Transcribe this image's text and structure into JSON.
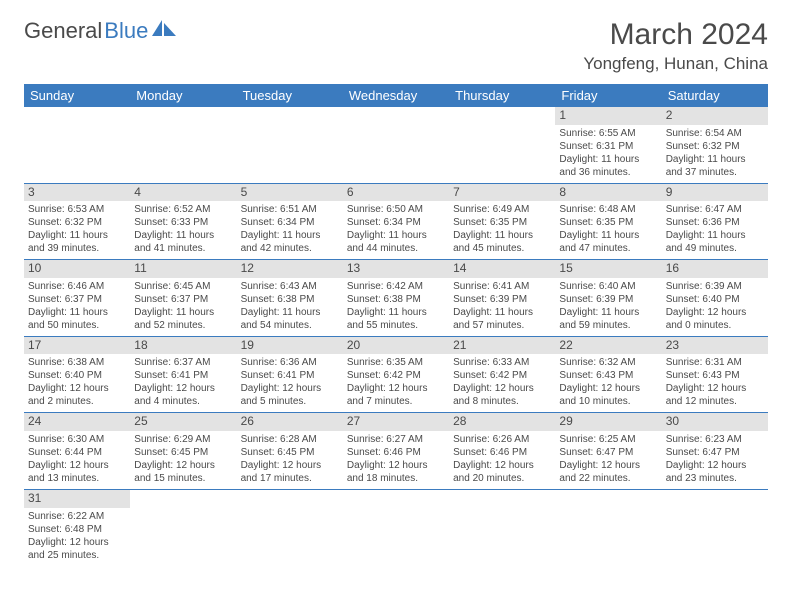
{
  "logo": {
    "text1": "General",
    "text2": "Blue"
  },
  "title": "March 2024",
  "location": "Yongfeng, Hunan, China",
  "colors": {
    "header_bg": "#3b7bbf",
    "header_fg": "#ffffff",
    "daynum_bg": "#e3e3e3",
    "rule": "#3b7bbf",
    "text": "#4a4a4a"
  },
  "day_headers": [
    "Sunday",
    "Monday",
    "Tuesday",
    "Wednesday",
    "Thursday",
    "Friday",
    "Saturday"
  ],
  "weeks": [
    [
      {
        "n": "",
        "sr": "",
        "ss": "",
        "dl1": "",
        "dl2": ""
      },
      {
        "n": "",
        "sr": "",
        "ss": "",
        "dl1": "",
        "dl2": ""
      },
      {
        "n": "",
        "sr": "",
        "ss": "",
        "dl1": "",
        "dl2": ""
      },
      {
        "n": "",
        "sr": "",
        "ss": "",
        "dl1": "",
        "dl2": ""
      },
      {
        "n": "",
        "sr": "",
        "ss": "",
        "dl1": "",
        "dl2": ""
      },
      {
        "n": "1",
        "sr": "Sunrise: 6:55 AM",
        "ss": "Sunset: 6:31 PM",
        "dl1": "Daylight: 11 hours",
        "dl2": "and 36 minutes."
      },
      {
        "n": "2",
        "sr": "Sunrise: 6:54 AM",
        "ss": "Sunset: 6:32 PM",
        "dl1": "Daylight: 11 hours",
        "dl2": "and 37 minutes."
      }
    ],
    [
      {
        "n": "3",
        "sr": "Sunrise: 6:53 AM",
        "ss": "Sunset: 6:32 PM",
        "dl1": "Daylight: 11 hours",
        "dl2": "and 39 minutes."
      },
      {
        "n": "4",
        "sr": "Sunrise: 6:52 AM",
        "ss": "Sunset: 6:33 PM",
        "dl1": "Daylight: 11 hours",
        "dl2": "and 41 minutes."
      },
      {
        "n": "5",
        "sr": "Sunrise: 6:51 AM",
        "ss": "Sunset: 6:34 PM",
        "dl1": "Daylight: 11 hours",
        "dl2": "and 42 minutes."
      },
      {
        "n": "6",
        "sr": "Sunrise: 6:50 AM",
        "ss": "Sunset: 6:34 PM",
        "dl1": "Daylight: 11 hours",
        "dl2": "and 44 minutes."
      },
      {
        "n": "7",
        "sr": "Sunrise: 6:49 AM",
        "ss": "Sunset: 6:35 PM",
        "dl1": "Daylight: 11 hours",
        "dl2": "and 45 minutes."
      },
      {
        "n": "8",
        "sr": "Sunrise: 6:48 AM",
        "ss": "Sunset: 6:35 PM",
        "dl1": "Daylight: 11 hours",
        "dl2": "and 47 minutes."
      },
      {
        "n": "9",
        "sr": "Sunrise: 6:47 AM",
        "ss": "Sunset: 6:36 PM",
        "dl1": "Daylight: 11 hours",
        "dl2": "and 49 minutes."
      }
    ],
    [
      {
        "n": "10",
        "sr": "Sunrise: 6:46 AM",
        "ss": "Sunset: 6:37 PM",
        "dl1": "Daylight: 11 hours",
        "dl2": "and 50 minutes."
      },
      {
        "n": "11",
        "sr": "Sunrise: 6:45 AM",
        "ss": "Sunset: 6:37 PM",
        "dl1": "Daylight: 11 hours",
        "dl2": "and 52 minutes."
      },
      {
        "n": "12",
        "sr": "Sunrise: 6:43 AM",
        "ss": "Sunset: 6:38 PM",
        "dl1": "Daylight: 11 hours",
        "dl2": "and 54 minutes."
      },
      {
        "n": "13",
        "sr": "Sunrise: 6:42 AM",
        "ss": "Sunset: 6:38 PM",
        "dl1": "Daylight: 11 hours",
        "dl2": "and 55 minutes."
      },
      {
        "n": "14",
        "sr": "Sunrise: 6:41 AM",
        "ss": "Sunset: 6:39 PM",
        "dl1": "Daylight: 11 hours",
        "dl2": "and 57 minutes."
      },
      {
        "n": "15",
        "sr": "Sunrise: 6:40 AM",
        "ss": "Sunset: 6:39 PM",
        "dl1": "Daylight: 11 hours",
        "dl2": "and 59 minutes."
      },
      {
        "n": "16",
        "sr": "Sunrise: 6:39 AM",
        "ss": "Sunset: 6:40 PM",
        "dl1": "Daylight: 12 hours",
        "dl2": "and 0 minutes."
      }
    ],
    [
      {
        "n": "17",
        "sr": "Sunrise: 6:38 AM",
        "ss": "Sunset: 6:40 PM",
        "dl1": "Daylight: 12 hours",
        "dl2": "and 2 minutes."
      },
      {
        "n": "18",
        "sr": "Sunrise: 6:37 AM",
        "ss": "Sunset: 6:41 PM",
        "dl1": "Daylight: 12 hours",
        "dl2": "and 4 minutes."
      },
      {
        "n": "19",
        "sr": "Sunrise: 6:36 AM",
        "ss": "Sunset: 6:41 PM",
        "dl1": "Daylight: 12 hours",
        "dl2": "and 5 minutes."
      },
      {
        "n": "20",
        "sr": "Sunrise: 6:35 AM",
        "ss": "Sunset: 6:42 PM",
        "dl1": "Daylight: 12 hours",
        "dl2": "and 7 minutes."
      },
      {
        "n": "21",
        "sr": "Sunrise: 6:33 AM",
        "ss": "Sunset: 6:42 PM",
        "dl1": "Daylight: 12 hours",
        "dl2": "and 8 minutes."
      },
      {
        "n": "22",
        "sr": "Sunrise: 6:32 AM",
        "ss": "Sunset: 6:43 PM",
        "dl1": "Daylight: 12 hours",
        "dl2": "and 10 minutes."
      },
      {
        "n": "23",
        "sr": "Sunrise: 6:31 AM",
        "ss": "Sunset: 6:43 PM",
        "dl1": "Daylight: 12 hours",
        "dl2": "and 12 minutes."
      }
    ],
    [
      {
        "n": "24",
        "sr": "Sunrise: 6:30 AM",
        "ss": "Sunset: 6:44 PM",
        "dl1": "Daylight: 12 hours",
        "dl2": "and 13 minutes."
      },
      {
        "n": "25",
        "sr": "Sunrise: 6:29 AM",
        "ss": "Sunset: 6:45 PM",
        "dl1": "Daylight: 12 hours",
        "dl2": "and 15 minutes."
      },
      {
        "n": "26",
        "sr": "Sunrise: 6:28 AM",
        "ss": "Sunset: 6:45 PM",
        "dl1": "Daylight: 12 hours",
        "dl2": "and 17 minutes."
      },
      {
        "n": "27",
        "sr": "Sunrise: 6:27 AM",
        "ss": "Sunset: 6:46 PM",
        "dl1": "Daylight: 12 hours",
        "dl2": "and 18 minutes."
      },
      {
        "n": "28",
        "sr": "Sunrise: 6:26 AM",
        "ss": "Sunset: 6:46 PM",
        "dl1": "Daylight: 12 hours",
        "dl2": "and 20 minutes."
      },
      {
        "n": "29",
        "sr": "Sunrise: 6:25 AM",
        "ss": "Sunset: 6:47 PM",
        "dl1": "Daylight: 12 hours",
        "dl2": "and 22 minutes."
      },
      {
        "n": "30",
        "sr": "Sunrise: 6:23 AM",
        "ss": "Sunset: 6:47 PM",
        "dl1": "Daylight: 12 hours",
        "dl2": "and 23 minutes."
      }
    ],
    [
      {
        "n": "31",
        "sr": "Sunrise: 6:22 AM",
        "ss": "Sunset: 6:48 PM",
        "dl1": "Daylight: 12 hours",
        "dl2": "and 25 minutes."
      },
      {
        "n": "",
        "sr": "",
        "ss": "",
        "dl1": "",
        "dl2": ""
      },
      {
        "n": "",
        "sr": "",
        "ss": "",
        "dl1": "",
        "dl2": ""
      },
      {
        "n": "",
        "sr": "",
        "ss": "",
        "dl1": "",
        "dl2": ""
      },
      {
        "n": "",
        "sr": "",
        "ss": "",
        "dl1": "",
        "dl2": ""
      },
      {
        "n": "",
        "sr": "",
        "ss": "",
        "dl1": "",
        "dl2": ""
      },
      {
        "n": "",
        "sr": "",
        "ss": "",
        "dl1": "",
        "dl2": ""
      }
    ]
  ]
}
